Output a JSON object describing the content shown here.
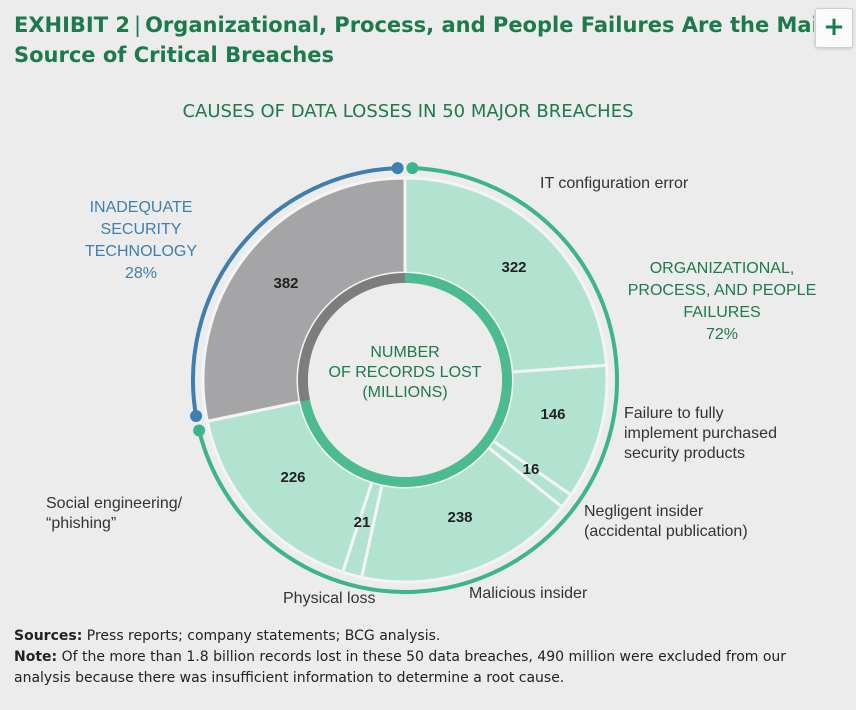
{
  "exhibit": {
    "label": "EXHIBIT 2",
    "separator": "|",
    "title_line1": "Organizational, Process, and People Failures Are the Mai",
    "title_line2": "Source of Critical Breaches",
    "expand_symbol": "+"
  },
  "colors": {
    "title_green": "#1c7a4c",
    "arc_green": "#3db58a",
    "light_green": "#b2e3d1",
    "medium_green": "#4cbb91",
    "gray_segment": "#a5a5a7",
    "dark_gray": "#7d7d80",
    "blue_arc": "#3e7fb0",
    "center_fill": "#ececec"
  },
  "chart_data": {
    "type": "pie",
    "title": "CAUSES OF DATA LOSSES IN 50 MAJOR BREACHES",
    "center_label": [
      "NUMBER",
      "OF RECORDS LOST",
      "(MILLIONS)"
    ],
    "unit": "millions of records",
    "slices": [
      {
        "label": "IT configuration error",
        "value": 322,
        "group": "org"
      },
      {
        "label": "Failure to fully implement purchased security products",
        "value": 146,
        "group": "org"
      },
      {
        "label": "Negligent insider (accidental publication)",
        "value": 16,
        "group": "org"
      },
      {
        "label": "Malicious insider",
        "value": 238,
        "group": "org"
      },
      {
        "label": "Physical loss",
        "value": 21,
        "group": "org"
      },
      {
        "label": "Social engineering/ “phishing”",
        "value": 226,
        "group": "org"
      },
      {
        "label": "",
        "value": 382,
        "group": "tech"
      }
    ],
    "groups": {
      "tech": {
        "lines": [
          "INADEQUATE",
          "SECURITY",
          "TECHNOLOGY",
          "28%"
        ],
        "percent": 28
      },
      "org": {
        "lines": [
          "ORGANIZATIONAL,",
          "PROCESS, AND PEOPLE",
          "FAILURES",
          "72%"
        ],
        "percent": 72
      }
    },
    "callouts": {
      "it_config": [
        "IT configuration error"
      ],
      "failure": [
        "Failure to fully",
        "implement purchased",
        "security products"
      ],
      "negligent": [
        "Negligent insider",
        "(accidental publication)"
      ],
      "malicious": [
        "Malicious insider"
      ],
      "physical": [
        "Physical loss"
      ],
      "social": [
        "Social engineering/",
        "“phishing”"
      ]
    }
  },
  "footer": {
    "sources_label": "Sources:",
    "sources_text": " Press reports; company statements; BCG analysis.",
    "note_label": "Note:",
    "note_text": " Of the more than 1.8 billion records lost in these 50 data breaches, 490 million were excluded from our analysis because there was insufficient information to determine a root cause."
  }
}
